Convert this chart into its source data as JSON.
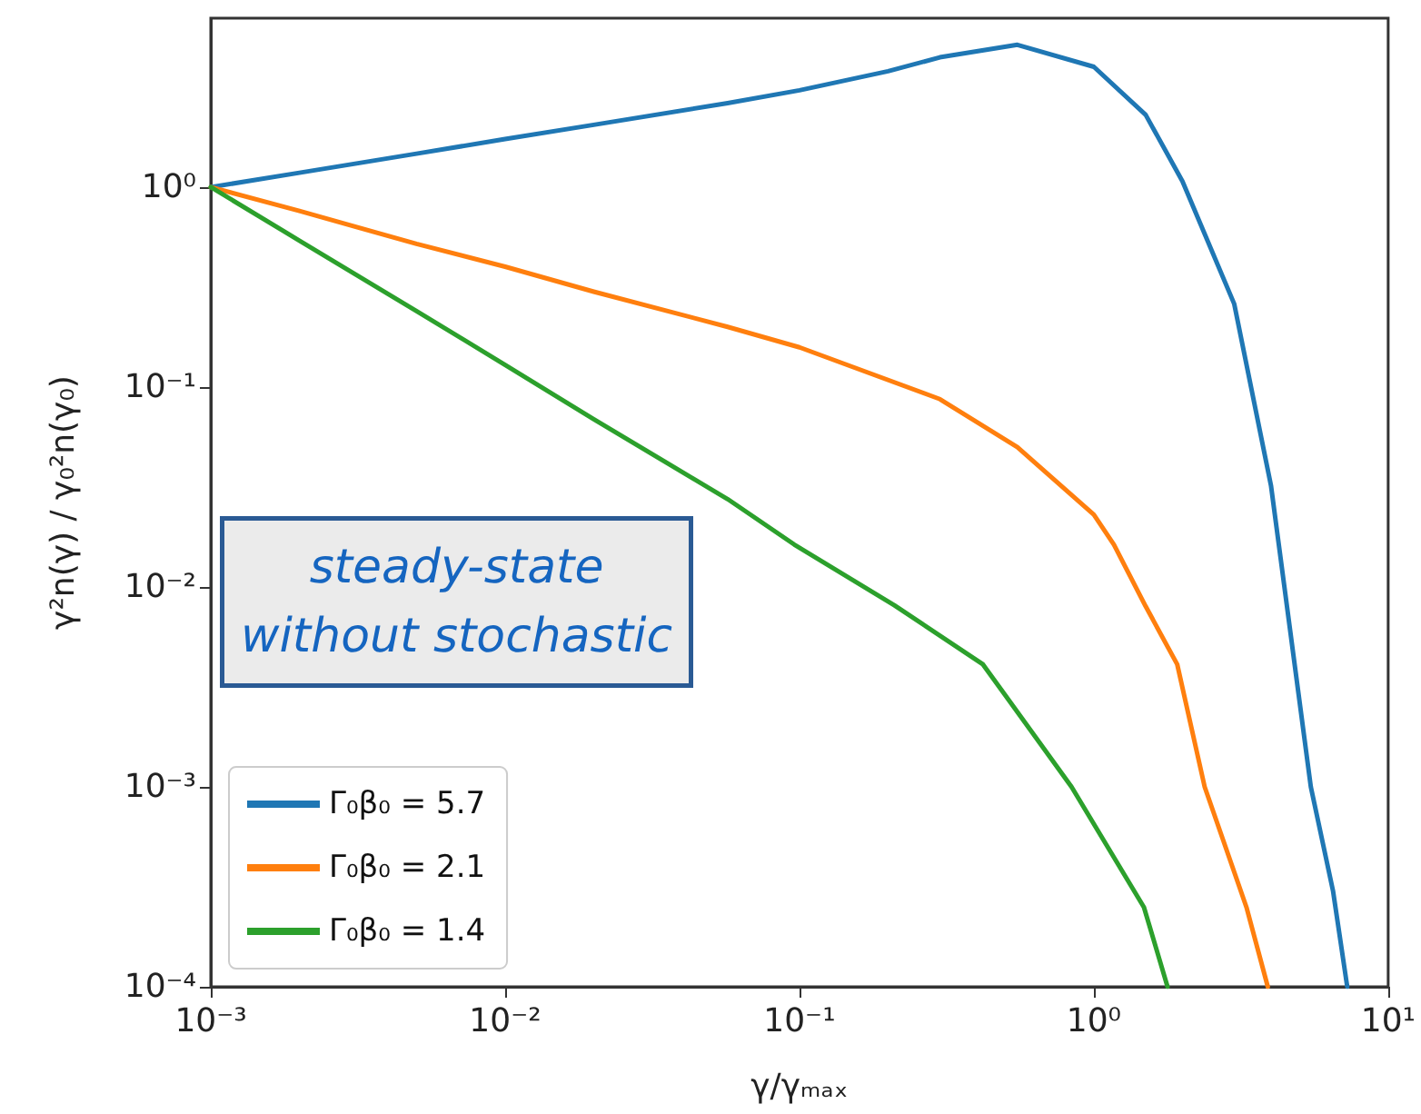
{
  "chart_data": {
    "type": "line",
    "xlabel": "γ/γₘₐₓ",
    "ylabel": "γ²n(γ) / γ₀²n(γ₀)",
    "log": "xy",
    "grid": false,
    "legend": "bottom left",
    "marker": "none",
    "line_style": "solid",
    "xlim": [
      0.001,
      10
    ],
    "ylim": [
      0.0001,
      7
    ],
    "xticks": [
      {
        "value": 0.001,
        "label": "10⁻³"
      },
      {
        "value": 0.01,
        "label": "10⁻²"
      },
      {
        "value": 0.1,
        "label": "10⁻¹"
      },
      {
        "value": 1,
        "label": "10⁰"
      },
      {
        "value": 10,
        "label": "10¹"
      }
    ],
    "yticks": [
      {
        "value": 0.0001,
        "label": "10⁻⁴"
      },
      {
        "value": 0.001,
        "label": "10⁻³"
      },
      {
        "value": 0.01,
        "label": "10⁻²"
      },
      {
        "value": 0.1,
        "label": "10⁻¹"
      },
      {
        "value": 1,
        "label": "10⁰"
      }
    ],
    "annotations": [
      "steady-state\nwithout stochastic"
    ],
    "series": [
      {
        "name": "Γ₀β₀ = 5.7",
        "color": "#1f77b4",
        "x": [
          0.001,
          0.002,
          0.005,
          0.01,
          0.02,
          0.057,
          0.1,
          0.2,
          0.3,
          0.55,
          1,
          1.5,
          2,
          3,
          4,
          4.25,
          5.46,
          6.5,
          7.26
        ],
        "values": [
          1,
          1.18,
          1.47,
          1.74,
          2.05,
          2.63,
          3.05,
          3.8,
          4.46,
          5.15,
          4.0,
          2.3,
          1.07,
          0.26,
          0.032,
          0.0163,
          0.001,
          0.0003,
          0.0001
        ]
      },
      {
        "name": "Γ₀β₀ = 2.1",
        "color": "#ff7f0e",
        "x": [
          0.001,
          0.002,
          0.005,
          0.01,
          0.02,
          0.057,
          0.1,
          0.3,
          0.55,
          1,
          1.17,
          1.5,
          1.92,
          2.38,
          3.3,
          3.9
        ],
        "values": [
          1,
          0.76,
          0.52,
          0.4,
          0.3,
          0.2,
          0.158,
          0.087,
          0.05,
          0.023,
          0.0163,
          0.008,
          0.0041,
          0.001,
          0.00025,
          0.0001
        ]
      },
      {
        "name": "Γ₀β₀ = 1.4",
        "color": "#2ca02c",
        "x": [
          0.001,
          0.002,
          0.005,
          0.01,
          0.02,
          0.057,
          0.096,
          0.21,
          0.42,
          0.84,
          1.48,
          1.78
        ],
        "values": [
          1,
          0.54,
          0.24,
          0.129,
          0.069,
          0.0275,
          0.0163,
          0.0081,
          0.0041,
          0.001,
          0.00025,
          0.0001
        ]
      }
    ]
  }
}
